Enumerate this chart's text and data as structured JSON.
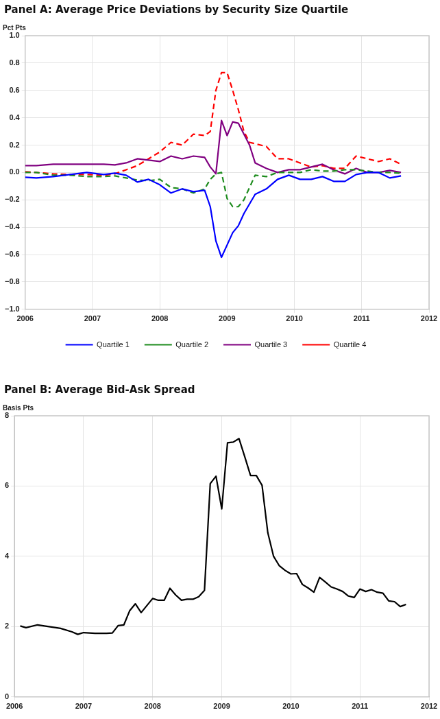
{
  "chart_data": [
    {
      "type": "line",
      "title": "Panel A:  Average Price Deviations by Security Size Quartile",
      "ylabel": "Pct Pts",
      "x": [
        "2006-01",
        "2006-03",
        "2006-06",
        "2006-09",
        "2006-12",
        "2007-03",
        "2007-05",
        "2007-07",
        "2007-09",
        "2007-11",
        "2008-01",
        "2008-03",
        "2008-05",
        "2008-07",
        "2008-09",
        "2008-10",
        "2008-11",
        "2008-12",
        "2009-01",
        "2009-02",
        "2009-03",
        "2009-04",
        "2009-05",
        "2009-06",
        "2009-08",
        "2009-10",
        "2009-12",
        "2010-02",
        "2010-04",
        "2010-06",
        "2010-08",
        "2010-10",
        "2010-12",
        "2011-02",
        "2011-04",
        "2011-06",
        "2011-08"
      ],
      "series": [
        {
          "name": "Quartile 1",
          "color": "#0000ff",
          "line_style": "solid",
          "values": [
            -0.035,
            -0.04,
            -0.03,
            -0.015,
            0.0,
            -0.015,
            -0.005,
            -0.02,
            -0.07,
            -0.05,
            -0.09,
            -0.15,
            -0.12,
            -0.14,
            -0.13,
            -0.25,
            -0.5,
            -0.62,
            -0.53,
            -0.44,
            -0.39,
            -0.3,
            -0.23,
            -0.16,
            -0.12,
            -0.05,
            -0.02,
            -0.05,
            -0.05,
            -0.03,
            -0.065,
            -0.065,
            -0.015,
            0.0,
            0.0,
            -0.04,
            -0.025
          ]
        },
        {
          "name": "Quartile 2",
          "color": "#1e8c1e",
          "line_style": "dashed",
          "values": [
            0.0,
            0.0,
            -0.02,
            -0.02,
            -0.03,
            -0.03,
            -0.025,
            -0.04,
            -0.055,
            -0.06,
            -0.05,
            -0.11,
            -0.12,
            -0.15,
            -0.12,
            -0.05,
            -0.01,
            0.0,
            -0.19,
            -0.25,
            -0.25,
            -0.2,
            -0.11,
            -0.02,
            -0.03,
            0.0,
            0.0,
            0.0,
            0.02,
            0.01,
            0.01,
            0.02,
            0.02,
            0.01,
            0.0,
            0.0,
            -0.005
          ]
        },
        {
          "name": "Quartile 3",
          "color": "#800080",
          "line_style": "solid",
          "values": [
            0.05,
            0.05,
            0.06,
            0.06,
            0.06,
            0.06,
            0.055,
            0.07,
            0.1,
            0.09,
            0.08,
            0.12,
            0.1,
            0.12,
            0.11,
            0.04,
            -0.01,
            0.38,
            0.27,
            0.37,
            0.36,
            0.28,
            0.2,
            0.07,
            0.03,
            0.0,
            0.02,
            0.02,
            0.04,
            0.06,
            0.02,
            -0.01,
            0.03,
            0.0,
            0.0,
            0.015,
            0.0
          ]
        },
        {
          "name": "Quartile 4",
          "color": "#ff0000",
          "line_style": "dashed",
          "values": [
            0.005,
            0.0,
            -0.01,
            -0.015,
            -0.015,
            -0.02,
            -0.01,
            0.02,
            0.05,
            0.1,
            0.15,
            0.22,
            0.2,
            0.28,
            0.27,
            0.3,
            0.6,
            0.73,
            0.73,
            0.6,
            0.46,
            0.3,
            0.22,
            0.21,
            0.19,
            0.1,
            0.1,
            0.07,
            0.04,
            0.05,
            0.03,
            0.03,
            0.12,
            0.1,
            0.08,
            0.1,
            0.06
          ]
        }
      ],
      "xlim": [
        "2006",
        "2012"
      ],
      "xticks": [
        "2006",
        "2007",
        "2008",
        "2009",
        "2010",
        "2011",
        "2012"
      ],
      "ylim": [
        -1,
        1
      ],
      "yticks": [
        {
          "value": -1,
          "label": "−1.0"
        },
        {
          "value": -0.8,
          "label": "−0.8"
        },
        {
          "value": -0.6,
          "label": "−0.6"
        },
        {
          "value": -0.4,
          "label": "−0.4"
        },
        {
          "value": -0.2,
          "label": "−0.2"
        },
        {
          "value": 0,
          "label": "0.0"
        },
        {
          "value": 0.2,
          "label": "0.2"
        },
        {
          "value": 0.4,
          "label": "0.4"
        },
        {
          "value": 0.6,
          "label": "0.6"
        },
        {
          "value": 0.8,
          "label": "0.8"
        },
        {
          "value": 1,
          "label": "1.0"
        }
      ],
      "grid": true,
      "legend": "bottom",
      "marker": "none"
    },
    {
      "type": "line",
      "title": "Panel B:  Average Bid-Ask Spread",
      "ylabel": "Basis Pts",
      "x": [
        "2006-02",
        "2006-03",
        "2006-05",
        "2006-07",
        "2006-09",
        "2006-11",
        "2006-12",
        "2007-01",
        "2007-03",
        "2007-05",
        "2007-06",
        "2007-07",
        "2007-08",
        "2007-09",
        "2007-10",
        "2007-11",
        "2007-12",
        "2008-01",
        "2008-02",
        "2008-03",
        "2008-04",
        "2008-05",
        "2008-06",
        "2008-07",
        "2008-08",
        "2008-09",
        "2008-10",
        "2008-11",
        "2008-12",
        "2009-01",
        "2009-02",
        "2009-03",
        "2009-04",
        "2009-05",
        "2009-06",
        "2009-07",
        "2009-08",
        "2009-09",
        "2009-10",
        "2009-11",
        "2009-12",
        "2010-01",
        "2010-02",
        "2010-03",
        "2010-04",
        "2010-05",
        "2010-06",
        "2010-07",
        "2010-08",
        "2010-09",
        "2010-10",
        "2010-11",
        "2010-12",
        "2011-01",
        "2011-02",
        "2011-03",
        "2011-04",
        "2011-05",
        "2011-06",
        "2011-07",
        "2011-08",
        "2011-09"
      ],
      "series": [
        {
          "color": "#000000",
          "line_style": "solid",
          "values": [
            2.02,
            1.97,
            2.05,
            2.0,
            1.95,
            1.85,
            1.78,
            1.83,
            1.81,
            1.81,
            1.82,
            2.03,
            2.05,
            2.45,
            2.65,
            2.4,
            2.6,
            2.8,
            2.75,
            2.75,
            3.09,
            2.9,
            2.75,
            2.78,
            2.78,
            2.85,
            3.03,
            6.07,
            6.28,
            5.35,
            7.23,
            7.25,
            7.35,
            6.83,
            6.3,
            6.3,
            6.02,
            4.67,
            4.0,
            3.73,
            3.6,
            3.5,
            3.51,
            3.2,
            3.1,
            2.98,
            3.4,
            3.27,
            3.13,
            3.07,
            3.0,
            2.87,
            2.83,
            3.07,
            3.0,
            3.05,
            2.98,
            2.95,
            2.73,
            2.71,
            2.57,
            2.63
          ]
        }
      ],
      "xlim": [
        "2006",
        "2012"
      ],
      "xticks": [
        "2006",
        "2007",
        "2008",
        "2009",
        "2010",
        "2011",
        "2012"
      ],
      "ylim": [
        0,
        8
      ],
      "yticks": [
        0,
        2,
        4,
        6,
        8
      ],
      "grid": true,
      "marker": "none"
    }
  ]
}
